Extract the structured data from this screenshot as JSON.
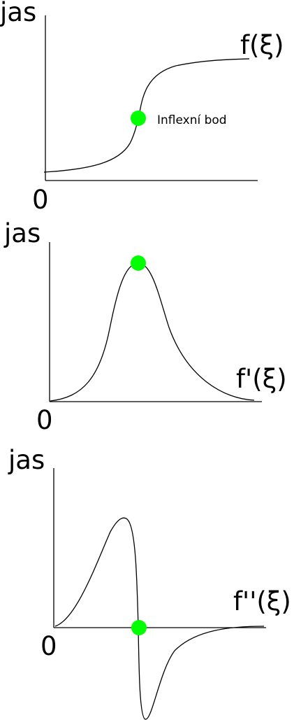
{
  "colors": {
    "marker": "#00ff00",
    "line": "#000000",
    "background": "#ffffff"
  },
  "panels": [
    {
      "y_axis_label": "jas",
      "origin_label": "0",
      "curve_label": "f(ξ)",
      "marker_label": "Inflexní bod"
    },
    {
      "y_axis_label": "jas",
      "origin_label": "0",
      "curve_label": "f'(ξ)"
    },
    {
      "y_axis_label": "jas",
      "origin_label": "0",
      "curve_label": "f''(ξ)"
    }
  ]
}
